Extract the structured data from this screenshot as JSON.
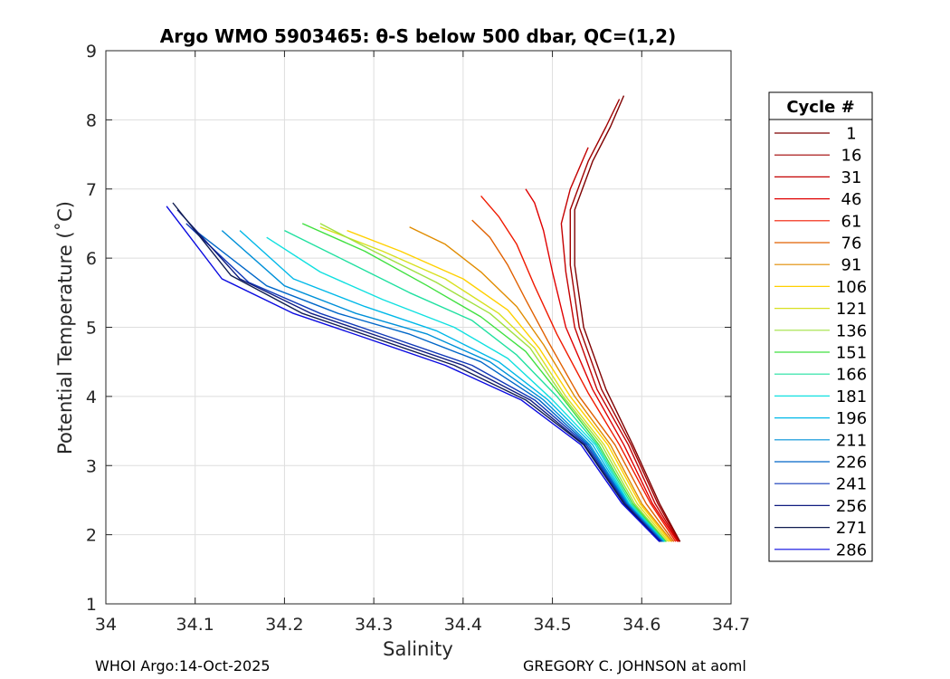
{
  "chart_data": {
    "type": "line",
    "title": "Argo WMO 5903465: θ-S below 500 dbar,  QC=(1,2)",
    "xlabel": "Salinity",
    "ylabel": "Potential Temperature (˚C)",
    "xlim": [
      34.0,
      34.7
    ],
    "ylim": [
      1,
      9
    ],
    "xticks": [
      34.0,
      34.1,
      34.2,
      34.3,
      34.4,
      34.5,
      34.6,
      34.7
    ],
    "xtick_labels": [
      "34",
      "34.1",
      "34.2",
      "34.3",
      "34.4",
      "34.5",
      "34.6",
      "34.7"
    ],
    "yticks": [
      1,
      2,
      3,
      4,
      5,
      6,
      7,
      8,
      9
    ],
    "ytick_labels": [
      "1",
      "2",
      "3",
      "4",
      "5",
      "6",
      "7",
      "8",
      "9"
    ],
    "grid": true,
    "legend_title": "Cycle #",
    "legend_placement": "right-outside",
    "series": [
      {
        "name": "1",
        "color": "#7f0000",
        "x": [
          34.643,
          34.62,
          34.59,
          34.56,
          34.535,
          34.525,
          34.525,
          34.545,
          34.565,
          34.58
        ],
        "y": [
          1.9,
          2.45,
          3.3,
          4.1,
          5.0,
          5.9,
          6.7,
          7.4,
          7.9,
          8.35
        ]
      },
      {
        "name": "16",
        "color": "#a00000",
        "x": [
          34.642,
          34.618,
          34.588,
          34.555,
          34.53,
          34.52,
          34.52,
          34.54,
          34.56,
          34.575
        ],
        "y": [
          1.9,
          2.45,
          3.3,
          4.1,
          5.0,
          5.9,
          6.7,
          7.4,
          7.9,
          8.3
        ]
      },
      {
        "name": "31",
        "color": "#c40000",
        "x": [
          34.641,
          34.615,
          34.585,
          34.55,
          34.525,
          34.515,
          34.51,
          34.52,
          34.53,
          34.54
        ],
        "y": [
          1.9,
          2.45,
          3.3,
          4.1,
          5.0,
          5.8,
          6.5,
          7.0,
          7.3,
          7.6
        ]
      },
      {
        "name": "46",
        "color": "#e00000",
        "x": [
          34.64,
          34.612,
          34.58,
          34.545,
          34.515,
          34.5,
          34.49,
          34.48,
          34.47
        ],
        "y": [
          1.9,
          2.45,
          3.3,
          4.1,
          5.0,
          5.8,
          6.4,
          6.8,
          7.0
        ]
      },
      {
        "name": "61",
        "color": "#f01a00",
        "x": [
          34.638,
          34.61,
          34.575,
          34.54,
          34.505,
          34.48,
          34.46,
          34.44,
          34.42
        ],
        "y": [
          1.9,
          2.45,
          3.3,
          4.05,
          4.9,
          5.6,
          6.2,
          6.6,
          6.9
        ]
      },
      {
        "name": "76",
        "color": "#e06000",
        "x": [
          34.636,
          34.605,
          34.57,
          34.53,
          34.495,
          34.47,
          34.45,
          34.43,
          34.41
        ],
        "y": [
          1.9,
          2.45,
          3.3,
          4.0,
          4.8,
          5.4,
          5.9,
          6.3,
          6.55
        ]
      },
      {
        "name": "91",
        "color": "#e08c00",
        "x": [
          34.634,
          34.6,
          34.565,
          34.525,
          34.49,
          34.46,
          34.42,
          34.38,
          34.34
        ],
        "y": [
          1.9,
          2.45,
          3.3,
          4.0,
          4.75,
          5.3,
          5.8,
          6.2,
          6.45
        ]
      },
      {
        "name": "106",
        "color": "#ffd000",
        "x": [
          34.632,
          34.598,
          34.562,
          34.52,
          34.485,
          34.45,
          34.4,
          34.33,
          34.27
        ],
        "y": [
          1.9,
          2.45,
          3.3,
          4.0,
          4.7,
          5.25,
          5.7,
          6.1,
          6.4
        ]
      },
      {
        "name": "121",
        "color": "#d8e020",
        "x": [
          34.63,
          34.595,
          34.558,
          34.515,
          34.48,
          34.44,
          34.38,
          34.31,
          34.24
        ],
        "y": [
          1.9,
          2.45,
          3.3,
          4.0,
          4.7,
          5.2,
          5.7,
          6.1,
          6.45
        ]
      },
      {
        "name": "136",
        "color": "#a0e040",
        "x": [
          34.628,
          34.592,
          34.555,
          34.512,
          34.475,
          34.43,
          34.37,
          34.3,
          34.24
        ],
        "y": [
          1.9,
          2.45,
          3.3,
          4.0,
          4.7,
          5.2,
          5.65,
          6.1,
          6.5
        ]
      },
      {
        "name": "151",
        "color": "#40e040",
        "x": [
          34.627,
          34.59,
          34.552,
          34.51,
          34.47,
          34.42,
          34.36,
          34.29,
          34.22
        ],
        "y": [
          1.9,
          2.45,
          3.3,
          4.0,
          4.65,
          5.15,
          5.6,
          6.1,
          6.5
        ]
      },
      {
        "name": "166",
        "color": "#20e0a0",
        "x": [
          34.626,
          34.588,
          34.55,
          34.505,
          34.46,
          34.41,
          34.34,
          34.27,
          34.2
        ],
        "y": [
          1.9,
          2.45,
          3.3,
          4.0,
          4.6,
          5.1,
          5.5,
          5.95,
          6.4
        ]
      },
      {
        "name": "181",
        "color": "#10e0e0",
        "x": [
          34.625,
          34.586,
          34.548,
          34.5,
          34.45,
          34.39,
          34.31,
          34.24,
          34.18
        ],
        "y": [
          1.9,
          2.45,
          3.3,
          3.95,
          4.55,
          5.0,
          5.4,
          5.8,
          6.3
        ]
      },
      {
        "name": "196",
        "color": "#00b8e8",
        "x": [
          34.625,
          34.585,
          34.545,
          34.495,
          34.44,
          34.37,
          34.29,
          34.21,
          34.15
        ],
        "y": [
          1.9,
          2.45,
          3.3,
          3.95,
          4.5,
          4.95,
          5.3,
          5.7,
          6.4
        ]
      },
      {
        "name": "211",
        "color": "#0090d8",
        "x": [
          34.624,
          34.584,
          34.542,
          34.49,
          34.43,
          34.36,
          34.28,
          34.2,
          34.13
        ],
        "y": [
          1.9,
          2.45,
          3.3,
          3.95,
          4.5,
          4.9,
          5.2,
          5.6,
          6.4
        ]
      },
      {
        "name": "226",
        "color": "#0066c8",
        "x": [
          34.623,
          34.583,
          34.54,
          34.485,
          34.42,
          34.34,
          34.26,
          34.18,
          34.1
        ],
        "y": [
          1.9,
          2.45,
          3.3,
          3.95,
          4.5,
          4.9,
          5.2,
          5.6,
          6.4
        ]
      },
      {
        "name": "241",
        "color": "#1038b8",
        "x": [
          34.622,
          34.582,
          34.538,
          34.48,
          34.41,
          34.32,
          34.24,
          34.16,
          34.09
        ],
        "y": [
          1.9,
          2.45,
          3.3,
          3.95,
          4.45,
          4.85,
          5.2,
          5.65,
          6.5
        ]
      },
      {
        "name": "256",
        "color": "#101c80",
        "x": [
          34.621,
          34.581,
          34.536,
          34.475,
          34.4,
          34.31,
          34.23,
          34.15,
          34.08
        ],
        "y": [
          1.9,
          2.45,
          3.3,
          3.95,
          4.45,
          4.85,
          5.2,
          5.7,
          6.7
        ]
      },
      {
        "name": "271",
        "color": "#101c50",
        "x": [
          34.62,
          34.58,
          34.535,
          34.47,
          34.39,
          34.3,
          34.22,
          34.14,
          34.075
        ],
        "y": [
          1.9,
          2.45,
          3.3,
          3.95,
          4.45,
          4.85,
          5.2,
          5.75,
          6.8
        ]
      },
      {
        "name": "286",
        "color": "#0a0ae0",
        "x": [
          34.62,
          34.578,
          34.532,
          34.465,
          34.38,
          34.29,
          34.21,
          34.13,
          34.068
        ],
        "y": [
          1.9,
          2.45,
          3.3,
          3.95,
          4.45,
          4.85,
          5.2,
          5.7,
          6.75
        ]
      }
    ]
  },
  "footer": {
    "left": "WHOI Argo:14-Oct-2025",
    "right": "GREGORY C. JOHNSON at aoml"
  }
}
